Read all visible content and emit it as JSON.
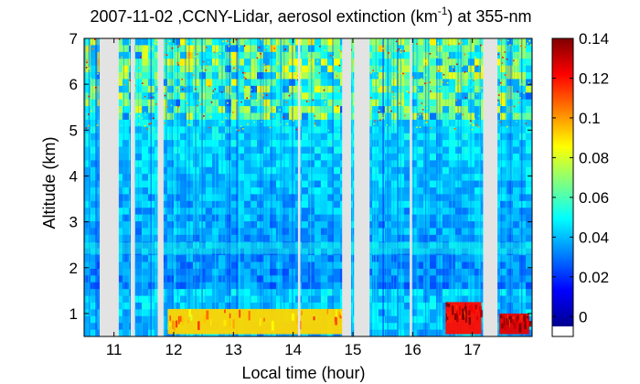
{
  "chart_data": {
    "type": "heatmap",
    "title": {
      "main": "2007-11-02 ,CCNY-Lidar, aerosol extinction (km",
      "superscript": "-1",
      "suffix": ") at 355-nm"
    },
    "xlabel": "Local time (hour)",
    "ylabel": "Altitude (km)",
    "xlim": [
      10.5,
      18.0
    ],
    "ylim": [
      0.5,
      7.0
    ],
    "x_ticks": [
      "11",
      "12",
      "13",
      "14",
      "15",
      "16",
      "17"
    ],
    "y_ticks": [
      "1",
      "2",
      "3",
      "4",
      "5",
      "6",
      "7"
    ],
    "colorbar": {
      "range": [
        -0.01,
        0.14
      ],
      "ticks": [
        "0",
        "0.02",
        "0.04",
        "0.06",
        "0.08",
        "0.1",
        "0.12",
        "0.14"
      ],
      "colormap": "jet"
    },
    "data_gaps": [
      {
        "from": 10.76,
        "to": 11.08
      },
      {
        "from": 11.28,
        "to": 11.35
      },
      {
        "from": 11.73,
        "to": 11.83
      },
      {
        "from": 14.08,
        "to": 14.12
      },
      {
        "from": 14.82,
        "to": 14.97
      },
      {
        "from": 15.02,
        "to": 15.28
      },
      {
        "from": 15.95,
        "to": 15.99
      },
      {
        "from": 17.18,
        "to": 17.42
      }
    ],
    "features": [
      {
        "name": "boundary layer",
        "x_from": 11.9,
        "x_to": 14.9,
        "alt_from": 0.55,
        "alt_to": 1.1,
        "value": 0.09
      },
      {
        "name": "boundary layer",
        "x_from": 16.55,
        "x_to": 17.15,
        "alt_from": 0.55,
        "alt_to": 1.25,
        "value": 0.12
      },
      {
        "name": "boundary layer",
        "x_from": 17.45,
        "x_to": 17.95,
        "alt_from": 0.55,
        "alt_to": 1.0,
        "value": 0.125
      },
      {
        "name": "residual layer",
        "x_from": 10.5,
        "x_to": 18.0,
        "alt_from": 2.3,
        "alt_to": 2.55,
        "value": 0.05
      }
    ]
  }
}
